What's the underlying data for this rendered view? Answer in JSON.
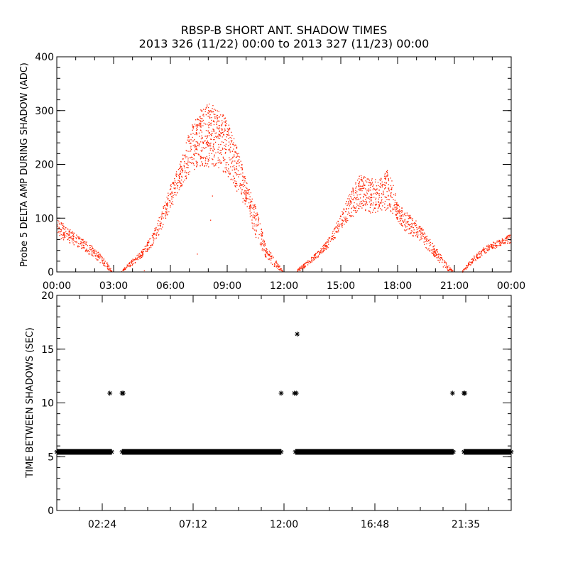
{
  "title_line1": "RBSP-B SHORT ANT. SHADOW TIMES",
  "title_line2": "2013 326 (11/22) 00:00 to 2013 327 (11/23) 00:00",
  "chart_data": [
    {
      "type": "scatter",
      "title": "RBSP-B SHORT ANT. SHADOW TIMES",
      "xlabel": "",
      "ylabel": "Probe 5 DELTA AMP DURING SHADOW (ADC)",
      "xlim": [
        0,
        24
      ],
      "ylim": [
        0,
        400
      ],
      "xunit": "hours",
      "xticks": [
        0,
        3,
        6,
        9,
        12,
        15,
        18,
        21,
        24
      ],
      "xtick_labels": [
        "00:00",
        "03:00",
        "06:00",
        "09:00",
        "12:00",
        "15:00",
        "18:00",
        "21:00",
        "00:00"
      ],
      "yticks": [
        0,
        100,
        200,
        300,
        400
      ],
      "ytick_labels": [
        "0",
        "100",
        "200",
        "300",
        "400"
      ],
      "color": "#ff2200",
      "envelope_note": "dense scatter; band [hour, lower, upper] values",
      "bands": [
        [
          [
            0,
            65,
            100
          ],
          [
            0.5,
            58,
            85
          ],
          [
            1,
            48,
            70
          ],
          [
            1.5,
            38,
            58
          ],
          [
            2,
            26,
            45
          ],
          [
            2.5,
            10,
            25
          ],
          [
            2.9,
            0,
            4
          ]
        ],
        [
          [
            3.4,
            0,
            3
          ],
          [
            4,
            14,
            25
          ],
          [
            4.5,
            28,
            42
          ],
          [
            5,
            48,
            72
          ],
          [
            5.5,
            78,
            112
          ],
          [
            6,
            118,
            165
          ],
          [
            6.5,
            155,
            205
          ],
          [
            7,
            185,
            265
          ],
          [
            7.5,
            198,
            300
          ],
          [
            8,
            195,
            315
          ],
          [
            8.5,
            195,
            305
          ],
          [
            9,
            178,
            282
          ],
          [
            9.5,
            150,
            232
          ],
          [
            10,
            118,
            172
          ],
          [
            10.5,
            60,
            122
          ],
          [
            11,
            28,
            52
          ],
          [
            11.5,
            10,
            25
          ],
          [
            11.9,
            0,
            4
          ]
        ],
        [
          [
            12.6,
            0,
            3
          ],
          [
            13,
            7,
            15
          ],
          [
            13.5,
            20,
            30
          ],
          [
            14,
            34,
            48
          ],
          [
            14.5,
            54,
            72
          ],
          [
            15,
            80,
            110
          ],
          [
            15.5,
            100,
            150
          ],
          [
            16,
            115,
            182
          ],
          [
            16.5,
            110,
            175
          ],
          [
            17,
            112,
            172
          ],
          [
            17.5,
            115,
            196
          ],
          [
            18,
            95,
            128
          ],
          [
            18.5,
            70,
            110
          ],
          [
            19,
            64,
            96
          ],
          [
            19.5,
            45,
            72
          ],
          [
            20,
            25,
            46
          ],
          [
            20.5,
            5,
            20
          ],
          [
            20.9,
            0,
            3
          ]
        ],
        [
          [
            21.4,
            0,
            3
          ],
          [
            22,
            18,
            30
          ],
          [
            22.5,
            33,
            45
          ],
          [
            23,
            43,
            56
          ],
          [
            23.5,
            50,
            63
          ],
          [
            24,
            55,
            72
          ]
        ]
      ],
      "outliers": [
        [
          7.4,
          34
        ],
        [
          8.1,
          97
        ],
        [
          8.2,
          142
        ],
        [
          4.6,
          3
        ]
      ]
    },
    {
      "type": "scatter",
      "title": "",
      "xlabel": "",
      "ylabel": "TIME BETWEEN SHADOWS (SEC)",
      "xlim": [
        0,
        24
      ],
      "ylim": [
        0,
        20
      ],
      "xunit": "hours",
      "xticks": [
        2.4,
        7.2,
        12.0,
        16.8,
        21.6
      ],
      "xtick_labels": [
        "02:24",
        "07:12",
        "12:00",
        "16:48",
        "21:35"
      ],
      "yticks": [
        0,
        5,
        10,
        15,
        20
      ],
      "ytick_labels": [
        "0",
        "5",
        "10",
        "15",
        "20"
      ],
      "marker": "asterisk",
      "color": "#000000",
      "baseline_value": 5.45,
      "baseline_ranges": [
        [
          0,
          2.9
        ],
        [
          3.45,
          11.85
        ],
        [
          12.6,
          20.95
        ],
        [
          21.5,
          24
        ]
      ],
      "points": [
        [
          2.8,
          10.9
        ],
        [
          3.45,
          10.9
        ],
        [
          3.5,
          10.9
        ],
        [
          11.85,
          10.9
        ],
        [
          12.55,
          10.9
        ],
        [
          12.65,
          10.9
        ],
        [
          12.7,
          16.4
        ],
        [
          20.9,
          10.9
        ],
        [
          21.5,
          10.9
        ],
        [
          21.55,
          10.9
        ]
      ]
    }
  ]
}
